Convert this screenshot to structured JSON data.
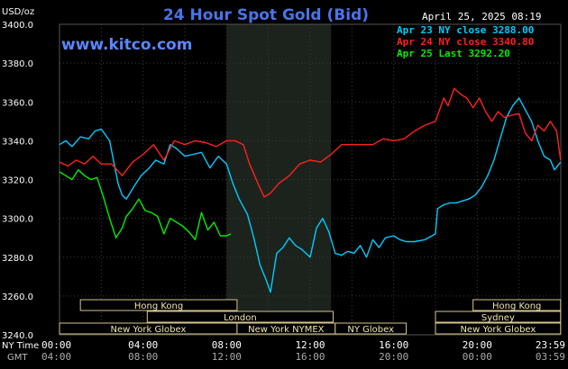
{
  "header": {
    "title": "24 Hour Spot Gold (Bid)",
    "date_time": "April 25, 2025 08:19",
    "unit_label": "USD/oz",
    "watermark": "www.kitco.com"
  },
  "legend": {
    "items": [
      {
        "label": "Apr 23 NY close 3288.00",
        "color": "#00ccff"
      },
      {
        "label": "Apr 24 NY close 3340.80",
        "color": "#ff2020"
      },
      {
        "label": "Apr 25 Last 3292.20",
        "color": "#00ee00"
      }
    ]
  },
  "axis": {
    "row_label_ny": "NY Time",
    "row_label_gmt": "GMT",
    "ny_ticks": [
      "00:00",
      "04:00",
      "08:00",
      "12:00",
      "16:00",
      "20:00",
      "23:59"
    ],
    "gmt_ticks": [
      "04:00",
      "08:00",
      "12:00",
      "16:00",
      "20:00",
      "00:00",
      "03:59"
    ]
  },
  "sessions": [
    {
      "label": "Hong Kong",
      "row": 0,
      "start_h": 1.0,
      "end_h": 8.5
    },
    {
      "label": "London",
      "row": 1,
      "start_h": 4.2,
      "end_h": 13.1
    },
    {
      "label": "New York Globex",
      "row": 2,
      "start_h": 0.0,
      "end_h": 8.5
    },
    {
      "label": "New York NYMEX",
      "row": 2,
      "start_h": 8.5,
      "end_h": 13.2
    },
    {
      "label": "NY Globex",
      "row": 2,
      "start_h": 13.2,
      "end_h": 16.6
    },
    {
      "label": "Hong Kong",
      "row": 0,
      "start_h": 19.8,
      "end_h": 23.99
    },
    {
      "label": "Sydney",
      "row": 1,
      "start_h": 18.0,
      "end_h": 23.99
    },
    {
      "label": "New York Globex",
      "row": 2,
      "start_h": 18.0,
      "end_h": 23.99
    }
  ],
  "chart_data": {
    "type": "line",
    "x_unit": "hours (NY time)",
    "xlim": [
      0,
      24
    ],
    "ylim": [
      3240,
      3400
    ],
    "y_ticks": [
      3240,
      3260,
      3280,
      3300,
      3320,
      3340,
      3360,
      3380,
      3400
    ],
    "y_tick_labels": [
      "3240.0",
      "3260.0",
      "3280.0",
      "3300.0",
      "3320.0",
      "3340.0",
      "3360.0",
      "3380.0",
      "3400.0"
    ],
    "grid": true,
    "shaded_x_range": [
      8,
      13
    ],
    "series": [
      {
        "name": "Apr 23 NY close 3288.00",
        "color": "#00ccff",
        "x": [
          0,
          0.3,
          0.6,
          1.0,
          1.4,
          1.7,
          2.0,
          2.4,
          2.8,
          3.0,
          3.2,
          3.6,
          3.9,
          4.3,
          4.6,
          5.0,
          5.3,
          5.6,
          6.0,
          6.4,
          6.8,
          7.2,
          7.6,
          8.0,
          8.3,
          8.6,
          9.0,
          9.3,
          9.6,
          9.9,
          10.1,
          10.4,
          10.7,
          11.0,
          11.3,
          11.6,
          12.0,
          12.3,
          12.6,
          12.9,
          13.2,
          13.5,
          13.8,
          14.1,
          14.4,
          14.7,
          15.0,
          15.3,
          15.6,
          16.0,
          16.3,
          16.6,
          17.0,
          17.5,
          18.0,
          18.1,
          18.4,
          18.7,
          19.0,
          19.3,
          19.6,
          19.9,
          20.2,
          20.5,
          20.8,
          21.1,
          21.4,
          21.7,
          22.0,
          22.3,
          22.6,
          22.9,
          23.2,
          23.5,
          23.7,
          23.99
        ],
        "y": [
          3338,
          3340,
          3337,
          3342,
          3341,
          3345,
          3346,
          3340,
          3318,
          3312,
          3310,
          3317,
          3322,
          3326,
          3330,
          3328,
          3338,
          3336,
          3332,
          3333,
          3334,
          3326,
          3332,
          3328,
          3318,
          3310,
          3302,
          3290,
          3276,
          3268,
          3262,
          3282,
          3285,
          3290,
          3286,
          3284,
          3280,
          3295,
          3300,
          3293,
          3282,
          3281,
          3283,
          3282,
          3286,
          3280,
          3289,
          3285,
          3290,
          3291,
          3289,
          3288,
          3288,
          3289,
          3292,
          3305,
          3307,
          3308,
          3308,
          3309,
          3310,
          3312,
          3316,
          3322,
          3330,
          3341,
          3352,
          3358,
          3362,
          3356,
          3350,
          3340,
          3332,
          3330,
          3325,
          3329
        ]
      },
      {
        "name": "Apr 24 NY close 3340.80",
        "color": "#ff2020",
        "x": [
          0,
          0.4,
          0.8,
          1.2,
          1.6,
          2.0,
          2.5,
          3.0,
          3.5,
          4.0,
          4.5,
          5.0,
          5.5,
          6.0,
          6.5,
          7.0,
          7.5,
          8.0,
          8.4,
          8.8,
          9.1,
          9.5,
          9.8,
          10.1,
          10.5,
          11.0,
          11.5,
          12.0,
          12.5,
          13.0,
          13.5,
          14.0,
          14.5,
          15.0,
          15.5,
          16.0,
          16.5,
          17.0,
          17.5,
          18.0,
          18.4,
          18.6,
          18.9,
          19.2,
          19.5,
          19.8,
          20.1,
          20.4,
          20.7,
          21.0,
          21.3,
          21.6,
          22.0,
          22.3,
          22.6,
          22.9,
          23.2,
          23.5,
          23.8,
          23.99
        ],
        "y": [
          3329,
          3327,
          3330,
          3328,
          3332,
          3328,
          3328,
          3322,
          3329,
          3333,
          3338,
          3330,
          3340,
          3338,
          3340,
          3339,
          3337,
          3340,
          3340,
          3338,
          3328,
          3318,
          3311,
          3313,
          3318,
          3322,
          3328,
          3330,
          3329,
          3333,
          3338,
          3338,
          3338,
          3338,
          3341,
          3340,
          3341,
          3345,
          3348,
          3350,
          3362,
          3358,
          3367,
          3364,
          3362,
          3357,
          3362,
          3355,
          3350,
          3355,
          3352,
          3353,
          3354,
          3344,
          3340,
          3348,
          3345,
          3350,
          3345,
          3330
        ]
      },
      {
        "name": "Apr 25 Last 3292.20",
        "color": "#00ee00",
        "x": [
          0,
          0.3,
          0.6,
          0.9,
          1.2,
          1.5,
          1.8,
          2.1,
          2.4,
          2.7,
          3.0,
          3.2,
          3.5,
          3.8,
          4.1,
          4.4,
          4.7,
          5.0,
          5.3,
          5.6,
          5.9,
          6.2,
          6.5,
          6.8,
          7.1,
          7.4,
          7.7,
          8.0,
          8.2
        ],
        "y": [
          3324,
          3322,
          3320,
          3325,
          3322,
          3320,
          3321,
          3311,
          3300,
          3290,
          3295,
          3301,
          3305,
          3310,
          3304,
          3303,
          3301,
          3292,
          3300,
          3298,
          3296,
          3293,
          3289,
          3303,
          3294,
          3298,
          3291,
          3291,
          3292
        ]
      }
    ]
  }
}
